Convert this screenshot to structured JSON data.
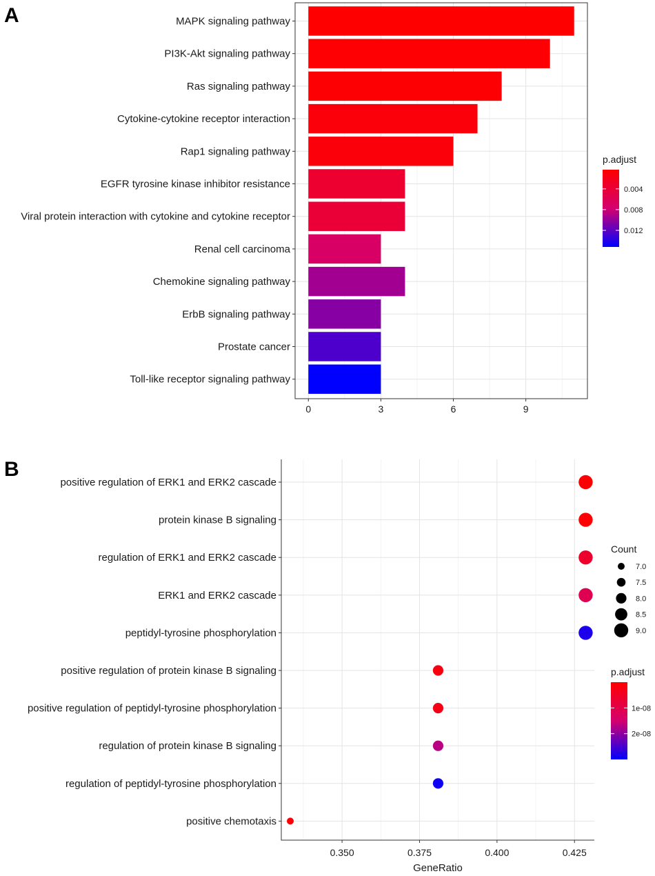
{
  "chart_data": [
    {
      "panel": "A",
      "type": "bar",
      "orientation": "horizontal",
      "categories": [
        "MAPK signaling pathway",
        "PI3K-Akt signaling pathway",
        "Ras signaling pathway",
        "Cytokine-cytokine receptor interaction",
        "Rap1 signaling pathway",
        "EGFR tyrosine kinase inhibitor resistance",
        "Viral protein interaction with cytokine and cytokine receptor",
        "Renal cell carcinoma",
        "Chemokine signaling pathway",
        "ErbB signaling pathway",
        "Prostate cancer",
        "Toll-like receptor signaling pathway"
      ],
      "values": [
        11,
        10,
        8,
        7,
        6,
        4,
        4,
        3,
        4,
        3,
        3,
        3
      ],
      "p_adjust": [
        0.0003,
        0.0005,
        0.0006,
        0.001,
        0.001,
        0.0035,
        0.004,
        0.007,
        0.0095,
        0.0105,
        0.0125,
        0.0152
      ],
      "xlim": [
        -0.55,
        11.55
      ],
      "xticks": [
        "0",
        "3",
        "6",
        "9"
      ],
      "xtick_values": [
        0,
        3,
        6,
        9
      ],
      "xlabel": "",
      "ylabel": "",
      "legend": {
        "title": "p.adjust",
        "labels": [
          "0.004",
          "0.008",
          "0.012"
        ],
        "label_values": [
          0.004,
          0.008,
          0.012
        ],
        "range": [
          0.0003,
          0.0152
        ],
        "low_color": "#ff0000",
        "high_color": "#0000ff",
        "placement": "right"
      }
    },
    {
      "panel": "B",
      "type": "scatter",
      "categories": [
        "positive regulation of ERK1 and ERK2 cascade",
        "protein kinase B signaling",
        "regulation of ERK1 and ERK2 cascade",
        "ERK1 and ERK2 cascade",
        "peptidyl-tyrosine phosphorylation",
        "positive regulation of protein kinase B signaling",
        "positive regulation of peptidyl-tyrosine phosphorylation",
        "regulation of protein kinase B signaling",
        "regulation of peptidyl-tyrosine phosphorylation",
        "positive chemotaxis"
      ],
      "gene_ratio": [
        0.4286,
        0.4286,
        0.4286,
        0.4286,
        0.4286,
        0.381,
        0.381,
        0.381,
        0.381,
        0.3333
      ],
      "count": [
        9,
        9,
        9,
        9,
        9,
        8,
        8,
        8,
        8,
        7
      ],
      "p_adjust": [
        2e-10,
        4e-10,
        6e-09,
        1.1e-08,
        2.8e-08,
        2e-09,
        3e-09,
        1.7e-08,
        2.9e-08,
        1e-09
      ],
      "xlim": [
        0.3304,
        0.4314
      ],
      "xticks": [
        "0.350",
        "0.375",
        "0.400",
        "0.425"
      ],
      "xtick_values": [
        0.35,
        0.375,
        0.4,
        0.425
      ],
      "xlabel": "GeneRatio",
      "ylabel": "",
      "size_legend": {
        "title": "Count",
        "labels": [
          "7.0",
          "7.5",
          "8.0",
          "8.5",
          "9.0"
        ],
        "values": [
          7,
          7.5,
          8,
          8.5,
          9
        ]
      },
      "color_legend": {
        "title": "p.adjust",
        "labels": [
          "1e-08",
          "2e-08"
        ],
        "label_values": [
          1e-08,
          2e-08
        ],
        "range": [
          0,
          3e-08
        ],
        "low_color": "#ff0000",
        "high_color": "#0000ff"
      }
    }
  ],
  "panel_letters": [
    "A",
    "B"
  ]
}
